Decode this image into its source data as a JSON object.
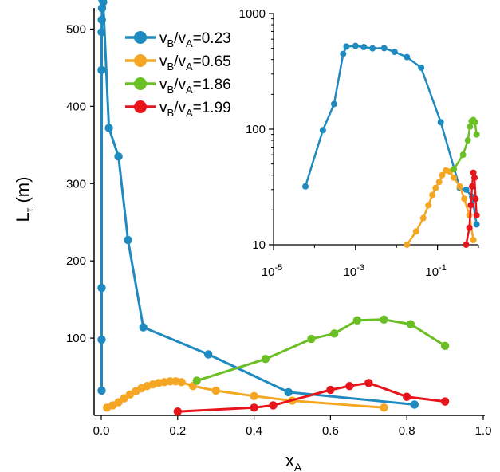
{
  "chart_data": [
    {
      "type": "line",
      "ylabel": "L",
      "ylabel_sub": "τ",
      "ylabel_unit": " (m)",
      "xlabel": "x",
      "xlabel_sub": "A",
      "xlim": [
        0,
        1.0
      ],
      "ylim": [
        0,
        550
      ],
      "x_ticks": [
        0.0,
        0.2,
        0.4,
        0.6,
        0.8,
        1.0
      ],
      "x_tick_labels": [
        "0.0",
        "0.2",
        "0.4",
        "0.6",
        "0.8",
        "1.0"
      ],
      "y_ticks": [
        100,
        200,
        300,
        400,
        500
      ],
      "y_tick_labels": [
        "100",
        "200",
        "300",
        "400",
        "500"
      ],
      "grid": false,
      "legend_position": "top-left",
      "series": [
        {
          "name": "v_B/v_A=0.23",
          "color": "#1f8ac0",
          "x": [
            0.001,
            0.001,
            0.001,
            0.001,
            0.001,
            0.0015,
            0.002,
            0.003,
            0.005,
            0.02,
            0.045,
            0.07,
            0.11,
            0.28,
            0.49,
            0.82
          ],
          "y": [
            32,
            98,
            165,
            447,
            496,
            512,
            527,
            538,
            535,
            372,
            335,
            227,
            114,
            79,
            30,
            14
          ]
        },
        {
          "name": "v_B/v_A=0.65",
          "color": "#f5a623",
          "x": [
            0.015,
            0.03,
            0.045,
            0.06,
            0.075,
            0.09,
            0.105,
            0.12,
            0.135,
            0.15,
            0.165,
            0.18,
            0.195,
            0.21,
            0.24,
            0.3,
            0.4,
            0.5,
            0.74
          ],
          "y": [
            10,
            13,
            17,
            22,
            27,
            31,
            35,
            38,
            40,
            42,
            43,
            44,
            44,
            43,
            38,
            32,
            25,
            19,
            10
          ]
        },
        {
          "name": "v_B/v_A=1.86",
          "color": "#6abf24",
          "x": [
            0.25,
            0.43,
            0.55,
            0.61,
            0.67,
            0.74,
            0.81,
            0.9
          ],
          "y": [
            45,
            73,
            99,
            106,
            123,
            124,
            118,
            90
          ]
        },
        {
          "name": "v_B/v_A=1.99",
          "color": "#e8141c",
          "x": [
            0.2,
            0.4,
            0.45,
            0.6,
            0.65,
            0.7,
            0.8,
            0.9
          ],
          "y": [
            5,
            10,
            13,
            33,
            38,
            42,
            24,
            18
          ]
        }
      ]
    },
    {
      "type": "line",
      "inset": true,
      "xscale": "log",
      "yscale": "log",
      "xlim": [
        1e-05,
        1.0
      ],
      "ylim": [
        10,
        1000
      ],
      "x_ticks": [
        1e-05,
        0.001,
        0.1
      ],
      "x_tick_labels": [
        {
          "base": "10",
          "exp": "-5"
        },
        {
          "base": "10",
          "exp": "-3"
        },
        {
          "base": "10",
          "exp": "-1"
        }
      ],
      "y_ticks": [
        10,
        100,
        1000
      ],
      "y_tick_labels": [
        "10",
        "100",
        "1000"
      ],
      "series": [
        {
          "name": "v_B/v_A=0.23",
          "color": "#1f8ac0",
          "x": [
            6e-05,
            0.00016,
            0.0003,
            0.0005,
            0.0006,
            0.001,
            0.0016,
            0.0026,
            0.005,
            0.009,
            0.018,
            0.04,
            0.12,
            0.35,
            0.5,
            0.7,
            0.9
          ],
          "y": [
            32,
            98,
            165,
            448,
            518,
            525,
            513,
            500,
            502,
            466,
            420,
            340,
            115,
            31,
            30,
            26,
            15
          ]
        },
        {
          "name": "v_B/v_A=0.65",
          "color": "#f5a623",
          "x": [
            0.018,
            0.03,
            0.045,
            0.06,
            0.075,
            0.09,
            0.11,
            0.13,
            0.16,
            0.2,
            0.25,
            0.35,
            0.45,
            0.6,
            0.75
          ],
          "y": [
            10,
            13,
            17,
            22,
            27,
            31,
            35,
            40,
            44,
            43,
            38,
            32,
            25,
            18,
            11
          ]
        },
        {
          "name": "v_B/v_A=1.86",
          "color": "#6abf24",
          "x": [
            0.25,
            0.42,
            0.55,
            0.62,
            0.68,
            0.75,
            0.82,
            0.9
          ],
          "y": [
            45,
            60,
            80,
            105,
            117,
            120,
            115,
            90
          ]
        },
        {
          "name": "v_B/v_A=1.99",
          "color": "#e8141c",
          "x": [
            0.5,
            0.6,
            0.65,
            0.7,
            0.75,
            0.8,
            0.85,
            0.9
          ],
          "y": [
            10,
            14,
            22,
            32,
            42,
            38,
            25,
            18
          ]
        }
      ]
    }
  ],
  "legend": [
    {
      "pre": "v",
      "sub1": "B",
      "mid": "/v",
      "sub2": "A",
      "post": "=0.23",
      "color": "#1f8ac0"
    },
    {
      "pre": "v",
      "sub1": "B",
      "mid": "/v",
      "sub2": "A",
      "post": "=0.65",
      "color": "#f5a623"
    },
    {
      "pre": "v",
      "sub1": "B",
      "mid": "/v",
      "sub2": "A",
      "post": "=1.86",
      "color": "#6abf24"
    },
    {
      "pre": "v",
      "sub1": "B",
      "mid": "/v",
      "sub2": "A",
      "post": "=1.99",
      "color": "#e8141c"
    }
  ]
}
